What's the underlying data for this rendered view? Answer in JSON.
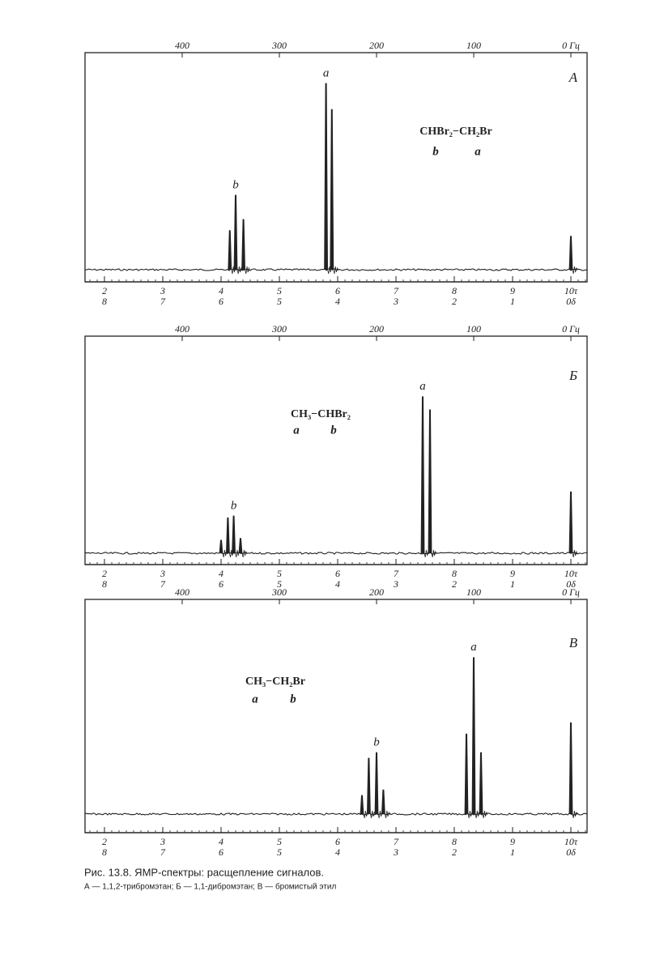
{
  "hz_axis": {
    "ticks": [
      400,
      300,
      200,
      100,
      {
        "value": 0,
        "label": "0 Гц"
      }
    ]
  },
  "tau_axis": {
    "ticks": [
      2,
      3,
      4,
      5,
      6,
      7,
      8,
      9,
      {
        "value": 10,
        "label": "10τ"
      }
    ]
  },
  "delta_axis": {
    "ticks": [
      8,
      7,
      6,
      5,
      4,
      3,
      2,
      1,
      {
        "value": 0,
        "label": "0δ"
      }
    ]
  },
  "panels": [
    {
      "letter": "А",
      "formula": "CHBr₂−CH₂Br",
      "formula_labels": [
        "b",
        "a"
      ],
      "groups": [
        {
          "label": "b",
          "peaks": [
            {
              "hz": 351,
              "intensity": 21
            },
            {
              "hz": 345,
              "intensity": 40
            },
            {
              "hz": 337,
              "intensity": 27
            }
          ]
        },
        {
          "label": "a",
          "peaks": [
            {
              "hz": 252,
              "intensity": 100
            },
            {
              "hz": 246,
              "intensity": 86
            }
          ]
        }
      ],
      "reference": {
        "hz": 0,
        "intensity": 18
      }
    },
    {
      "letter": "Б",
      "formula": "CH₃−CHBr₂",
      "formula_labels": [
        "a",
        "b"
      ],
      "groups": [
        {
          "label": "b",
          "peaks": [
            {
              "hz": 360,
              "intensity": 7
            },
            {
              "hz": 353,
              "intensity": 19
            },
            {
              "hz": 347,
              "intensity": 20
            },
            {
              "hz": 340,
              "intensity": 8
            }
          ]
        },
        {
          "label": "a",
          "peaks": [
            {
              "hz": 152.5,
              "intensity": 84
            },
            {
              "hz": 145,
              "intensity": 77
            }
          ]
        }
      ],
      "reference": {
        "hz": 0,
        "intensity": 33
      }
    },
    {
      "letter": "В",
      "formula": "CH₃−CH₂Br",
      "formula_labels": [
        "a",
        "b"
      ],
      "groups": [
        {
          "label": "b",
          "peaks": [
            {
              "hz": 215,
              "intensity": 10
            },
            {
              "hz": 208,
              "intensity": 30
            },
            {
              "hz": 200,
              "intensity": 33
            },
            {
              "hz": 193,
              "intensity": 13
            }
          ]
        },
        {
          "label": "a",
          "peaks": [
            {
              "hz": 107.5,
              "intensity": 43
            },
            {
              "hz": 100,
              "intensity": 84
            },
            {
              "hz": 92.5,
              "intensity": 33
            }
          ]
        }
      ],
      "reference": {
        "hz": 0,
        "intensity": 49
      }
    }
  ],
  "caption": {
    "title": "Рис. 13.8. ЯМР-спектры: расщепление сигналов.",
    "legend": "А — 1,1,2-трибромэтан; Б — 1,1-дибромэтан; В — бромистый этил"
  }
}
